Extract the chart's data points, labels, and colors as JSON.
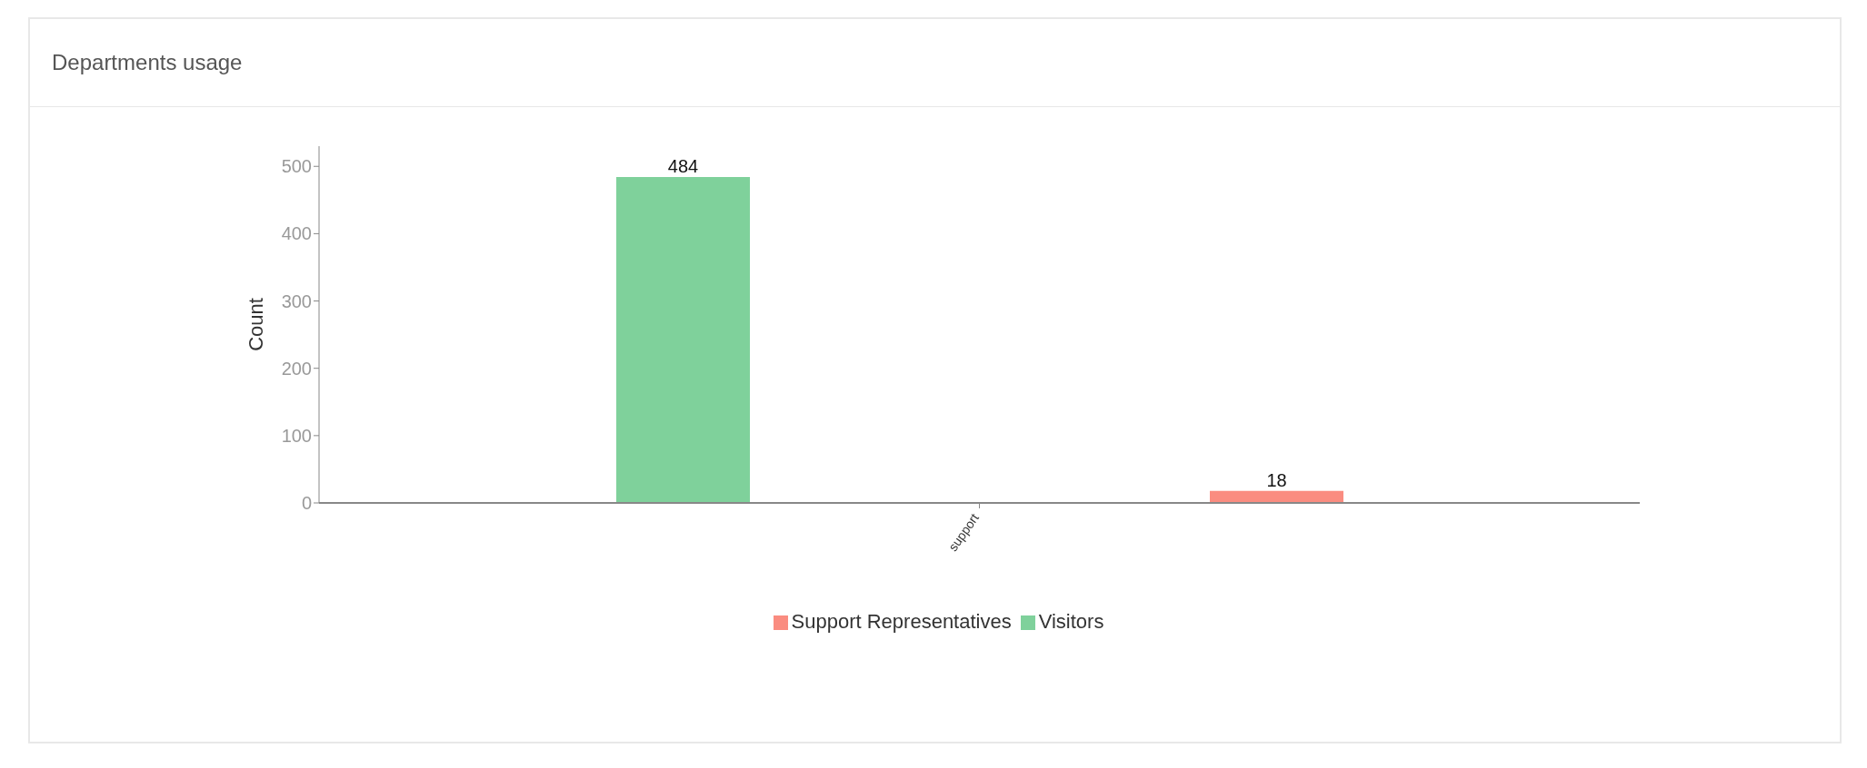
{
  "chart_data": {
    "type": "bar",
    "title": "Departments usage",
    "ylabel": "Count",
    "categories": [
      "support"
    ],
    "series": [
      {
        "name": "Visitors",
        "color": "#7fd19b",
        "values": [
          484
        ]
      },
      {
        "name": "Support Representatives",
        "color": "#fa8c80",
        "values": [
          18
        ]
      }
    ],
    "ylim": [
      0,
      530
    ],
    "yticks": [
      0,
      100,
      200,
      300,
      400,
      500
    ],
    "grid": false,
    "legend": "bottom",
    "data_labels": true
  }
}
